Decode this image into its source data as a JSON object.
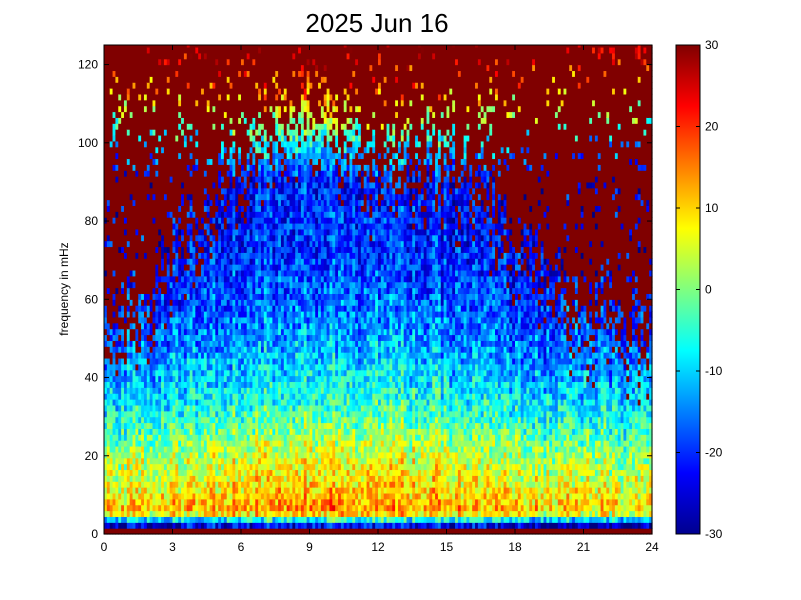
{
  "chart_data": {
    "type": "heatmap",
    "title": "2025 Jun 16",
    "xlabel": "",
    "ylabel": "frequency in mHz",
    "xlim": [
      0,
      24
    ],
    "ylim": [
      0,
      125
    ],
    "x_ticks": [
      0,
      3,
      6,
      9,
      12,
      15,
      18,
      21,
      24
    ],
    "x_tick_labels": [
      "0",
      "3",
      "6",
      "9",
      "12",
      "15",
      "18",
      "21",
      "24"
    ],
    "y_ticks": [
      0,
      20,
      40,
      60,
      80,
      100,
      120
    ],
    "y_tick_labels": [
      "0",
      "20",
      "40",
      "60",
      "80",
      "100",
      "120"
    ],
    "colorbar": {
      "colormap": "jet",
      "clim": [
        -30,
        30
      ],
      "ticks": [
        -30,
        -20,
        -10,
        0,
        10,
        20,
        30
      ],
      "tick_labels": [
        "-30",
        "-20",
        "-10",
        "0",
        "10",
        "20",
        "30"
      ]
    },
    "time_resolution_hours": 0.125,
    "freq_resolution_mHz": 1.5,
    "power_profile": {
      "description_values": "approximate power level (colorbar units) by frequency band, strongest activity between ~3h and ~16h",
      "freq_mHz": [
        0,
        1.5,
        5,
        10,
        20,
        30,
        40,
        55,
        70,
        90,
        125
      ],
      "typical_level": [
        30,
        -25,
        12,
        8,
        2,
        -6,
        -12,
        -18,
        -22,
        -24,
        30
      ]
    },
    "high_freq_saturated_region_start_mHz_by_hour": {
      "hours": [
        0,
        3,
        6,
        9,
        12,
        15,
        18,
        21,
        24
      ],
      "freq_mHz": [
        55,
        75,
        100,
        115,
        95,
        100,
        80,
        60,
        55
      ]
    }
  },
  "colors": {
    "background": "#ffffff",
    "axes": "#000000",
    "saturated_high": "#800000"
  }
}
